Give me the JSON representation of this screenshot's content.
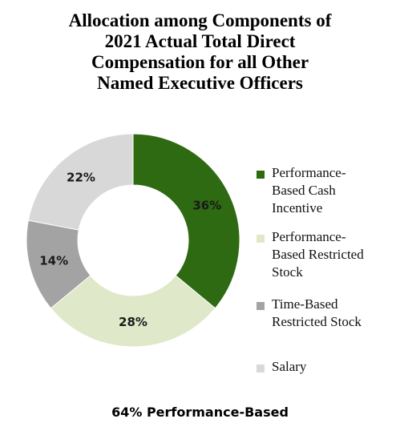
{
  "chart_data": {
    "type": "pie",
    "title_lines": [
      "Allocation among Components of",
      "2021 Actual Total Direct",
      "Compensation for all Other",
      "Named Executive Officers"
    ],
    "slices": [
      {
        "label": "Performance-Based Cash Incentive",
        "value": 36,
        "display": "36%",
        "color": "#2d6a12",
        "label_lines": [
          "Performance-",
          "Based Cash",
          "Incentive"
        ]
      },
      {
        "label": "Performance-Based Restricted Stock",
        "value": 28,
        "display": "28%",
        "color": "#dfe8c8",
        "label_lines": [
          "Performance-",
          "Based Restricted",
          "Stock"
        ]
      },
      {
        "label": "Time-Based Restricted Stock",
        "value": 14,
        "display": "14%",
        "color": "#a3a3a3",
        "label_lines": [
          "Time-Based",
          "Restricted Stock"
        ]
      },
      {
        "label": "Salary",
        "value": 22,
        "display": "22%",
        "color": "#d8d8d8",
        "label_lines": [
          "Salary"
        ]
      }
    ],
    "start_angle": "12 o'clock",
    "direction": "clockwise",
    "legend_position": "right"
  },
  "footer_text": "64% Performance-Based"
}
